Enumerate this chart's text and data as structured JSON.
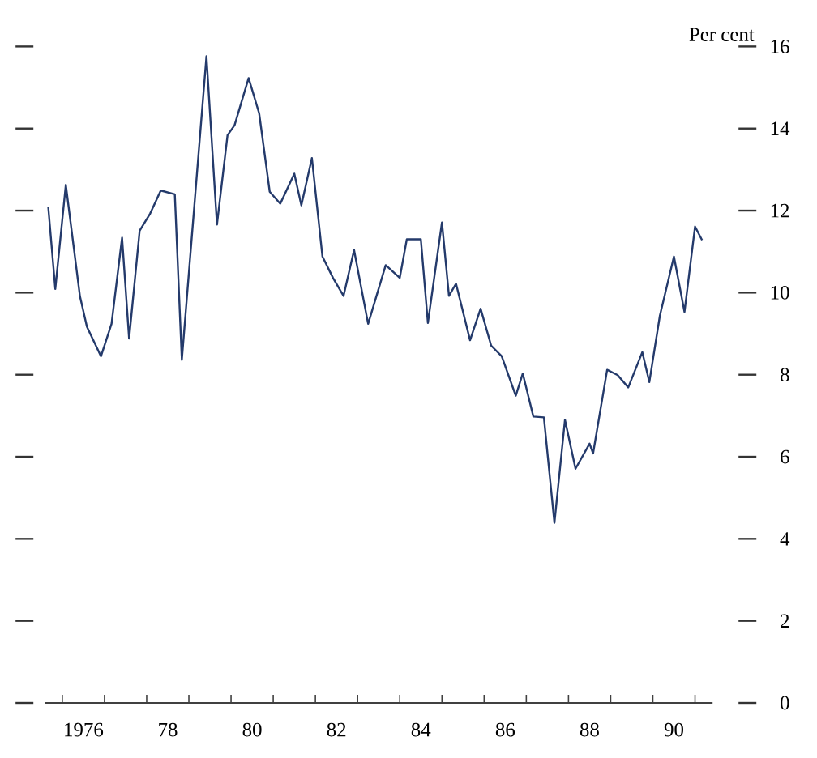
{
  "chart_data": {
    "type": "line",
    "ylabel": "Per cent",
    "x": [
      "1975-09",
      "1975-11",
      "1976-02",
      "1976-06",
      "1976-08",
      "1976-12",
      "1977-03",
      "1977-06",
      "1977-08",
      "1977-11",
      "1978-02",
      "1978-05",
      "1978-09",
      "1978-11",
      "1979-06",
      "1979-09",
      "1979-12",
      "1980-02",
      "1980-06",
      "1980-09",
      "1980-12",
      "1981-03",
      "1981-07",
      "1981-09",
      "1981-12",
      "1982-03",
      "1982-06",
      "1982-09",
      "1982-12",
      "1983-04",
      "1983-09",
      "1984-01",
      "1984-03",
      "1984-07",
      "1984-09",
      "1985-01",
      "1985-03",
      "1985-05",
      "1985-09",
      "1985-12",
      "1986-03",
      "1986-06",
      "1986-10",
      "1986-12",
      "1987-03",
      "1987-06",
      "1987-09",
      "1987-12",
      "1988-03",
      "1988-07",
      "1988-08",
      "1988-12",
      "1989-03",
      "1989-06",
      "1989-10",
      "1989-12",
      "1990-03",
      "1990-07",
      "1990-10",
      "1991-01",
      "1991-03"
    ],
    "values": [
      12.09,
      10.09,
      12.63,
      9.92,
      9.17,
      8.45,
      9.24,
      11.34,
      8.88,
      11.51,
      11.93,
      12.49,
      12.4,
      8.36,
      15.76,
      11.66,
      13.84,
      14.08,
      15.23,
      14.37,
      12.46,
      12.17,
      12.9,
      12.13,
      13.28,
      10.88,
      10.36,
      9.92,
      11.04,
      9.24,
      10.67,
      10.36,
      11.3,
      11.3,
      9.26,
      11.71,
      9.92,
      10.22,
      8.84,
      9.61,
      8.71,
      8.45,
      7.49,
      8.03,
      6.98,
      6.96,
      4.39,
      6.9,
      5.71,
      6.32,
      6.08,
      8.12,
      7.99,
      7.69,
      8.55,
      7.82,
      9.44,
      10.88,
      9.53,
      11.61,
      11.28
    ],
    "color": "#243a6b",
    "line_style": "solid",
    "marker": "none",
    "xlim": [
      "1975-08",
      "1991-06"
    ],
    "ylim": [
      0,
      16
    ],
    "yticks": [
      0,
      2,
      4,
      6,
      8,
      10,
      12,
      14,
      16
    ],
    "xticks": [
      {
        "value": "1976",
        "label": null
      },
      {
        "value": "1976-07",
        "label": "1976"
      },
      {
        "value": "1977",
        "label": null
      },
      {
        "value": "1978",
        "label": null
      },
      {
        "value": "1978-07",
        "label": "78"
      },
      {
        "value": "1979",
        "label": null
      },
      {
        "value": "1980",
        "label": null
      },
      {
        "value": "1980-07",
        "label": "80"
      },
      {
        "value": "1981",
        "label": null
      },
      {
        "value": "1982",
        "label": null
      },
      {
        "value": "1982-07",
        "label": "82"
      },
      {
        "value": "1983",
        "label": null
      },
      {
        "value": "1984",
        "label": null
      },
      {
        "value": "1984-07",
        "label": "84"
      },
      {
        "value": "1985",
        "label": null
      },
      {
        "value": "1986",
        "label": null
      },
      {
        "value": "1986-07",
        "label": "86"
      },
      {
        "value": "1987",
        "label": null
      },
      {
        "value": "1988",
        "label": null
      },
      {
        "value": "1988-07",
        "label": "88"
      },
      {
        "value": "1989",
        "label": null
      },
      {
        "value": "1990",
        "label": null
      },
      {
        "value": "1990-07",
        "label": "90"
      },
      {
        "value": "1991",
        "label": null
      }
    ],
    "grid": false
  }
}
